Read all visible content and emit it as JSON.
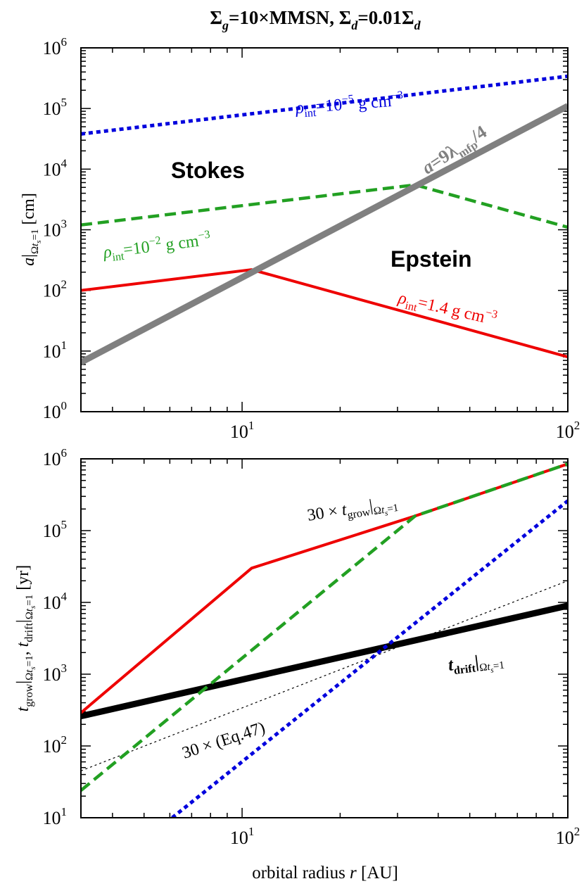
{
  "title": "Σg=10×MMSN, Σd=0.01Σd",
  "chart_data": [
    {
      "type": "line",
      "xscale": "log",
      "yscale": "log",
      "xlim": [
        3.2,
        100
      ],
      "ylim": [
        1,
        1000000
      ],
      "x_ticks": [
        {
          "value": 10,
          "label": "10",
          "exp": "1"
        },
        {
          "value": 100,
          "label": "10",
          "exp": "2"
        }
      ],
      "y_ticks": [
        {
          "value": 1,
          "label": "10",
          "exp": "0"
        },
        {
          "value": 10,
          "label": "10",
          "exp": "1"
        },
        {
          "value": 100,
          "label": "10",
          "exp": "2"
        },
        {
          "value": 1000,
          "label": "10",
          "exp": "3"
        },
        {
          "value": 10000,
          "label": "10",
          "exp": "4"
        },
        {
          "value": 100000,
          "label": "10",
          "exp": "5"
        },
        {
          "value": 1000000,
          "label": "10",
          "exp": "6"
        }
      ],
      "ylabel": "a|Ωts=1 [cm]",
      "series": [
        {
          "color": "#0000dd",
          "style": "dotted",
          "points": [
            [
              3.2,
              38000
            ],
            [
              100,
              340000
            ]
          ]
        },
        {
          "color": "#22a022",
          "style": "dashed",
          "points": [
            [
              3.2,
              1200
            ],
            [
              34,
              5500
            ],
            [
              100,
              1100
            ]
          ]
        },
        {
          "color": "#ee0000",
          "style": "solid",
          "points": [
            [
              3.2,
              100
            ],
            [
              10.7,
              220
            ],
            [
              100,
              8
            ]
          ]
        },
        {
          "color": "#808080",
          "style": "thick",
          "points": [
            [
              3.2,
              6.5
            ],
            [
              100,
              110000
            ]
          ]
        }
      ],
      "annotations": [
        {
          "text": "Stokes",
          "x": 5.2,
          "y": 6000,
          "color": "#000000"
        },
        {
          "text": "Epstein",
          "x": 50,
          "y": 200,
          "color": "#000000"
        },
        {
          "text": "ρint=10⁻⁵ g cm⁻³",
          "x": 14.5,
          "y": 200000,
          "color": "#0000dd"
        },
        {
          "text": "ρint=10⁻² g cm⁻³",
          "x": 4.7,
          "y": 600,
          "color": "#22a022"
        },
        {
          "text": "ρint=1.4 g cm⁻³",
          "x": 52,
          "y": 40,
          "color": "#ee0000"
        },
        {
          "text": "a=9λmfp/4",
          "x": 45,
          "y": 11000,
          "color": "#808080"
        }
      ]
    },
    {
      "type": "line",
      "xscale": "log",
      "yscale": "log",
      "xlim": [
        3.2,
        100
      ],
      "ylim": [
        10,
        1000000
      ],
      "x_ticks": [
        {
          "value": 10,
          "label": "10",
          "exp": "1"
        },
        {
          "value": 100,
          "label": "10",
          "exp": "2"
        }
      ],
      "y_ticks": [
        {
          "value": 10,
          "label": "10",
          "exp": "1"
        },
        {
          "value": 100,
          "label": "10",
          "exp": "2"
        },
        {
          "value": 1000,
          "label": "10",
          "exp": "3"
        },
        {
          "value": 10000,
          "label": "10",
          "exp": "4"
        },
        {
          "value": 100000,
          "label": "10",
          "exp": "5"
        },
        {
          "value": 1000000,
          "label": "10",
          "exp": "6"
        }
      ],
      "xlabel": "orbital radius  r [AU]",
      "ylabel": "tgrow|Ωts=1,  tdrift|Ωts=1 [yr]",
      "series": [
        {
          "color": "#000000",
          "style": "dotted-thin",
          "points": [
            [
              3.2,
              45
            ],
            [
              100,
              20000
            ]
          ]
        },
        {
          "color": "#000000",
          "style": "thick",
          "points": [
            [
              3.2,
              260
            ],
            [
              100,
              9000
            ]
          ]
        },
        {
          "color": "#0000dd",
          "style": "dotted",
          "points": [
            [
              6.1,
              10
            ],
            [
              100,
              260000
            ]
          ]
        },
        {
          "color": "#ee0000",
          "style": "solid",
          "points": [
            [
              3.2,
              290
            ],
            [
              10.7,
              30000
            ],
            [
              34,
              160000
            ],
            [
              100,
              850000
            ]
          ]
        },
        {
          "color": "#22a022",
          "style": "dashed",
          "points": [
            [
              3.2,
              24
            ],
            [
              34,
              160000
            ],
            [
              100,
              850000
            ]
          ]
        }
      ],
      "annotations": [
        {
          "text": "30 × tgrow|Ωts=1",
          "x": 19.5,
          "y": 240000,
          "color": "#000000"
        },
        {
          "text": "30 × (Eq.47)",
          "x": 10.5,
          "y": 160,
          "color": "#000000"
        },
        {
          "text": "tdrift|Ωts=1",
          "x": 62,
          "y": 2600,
          "color": "#000000"
        }
      ]
    }
  ]
}
